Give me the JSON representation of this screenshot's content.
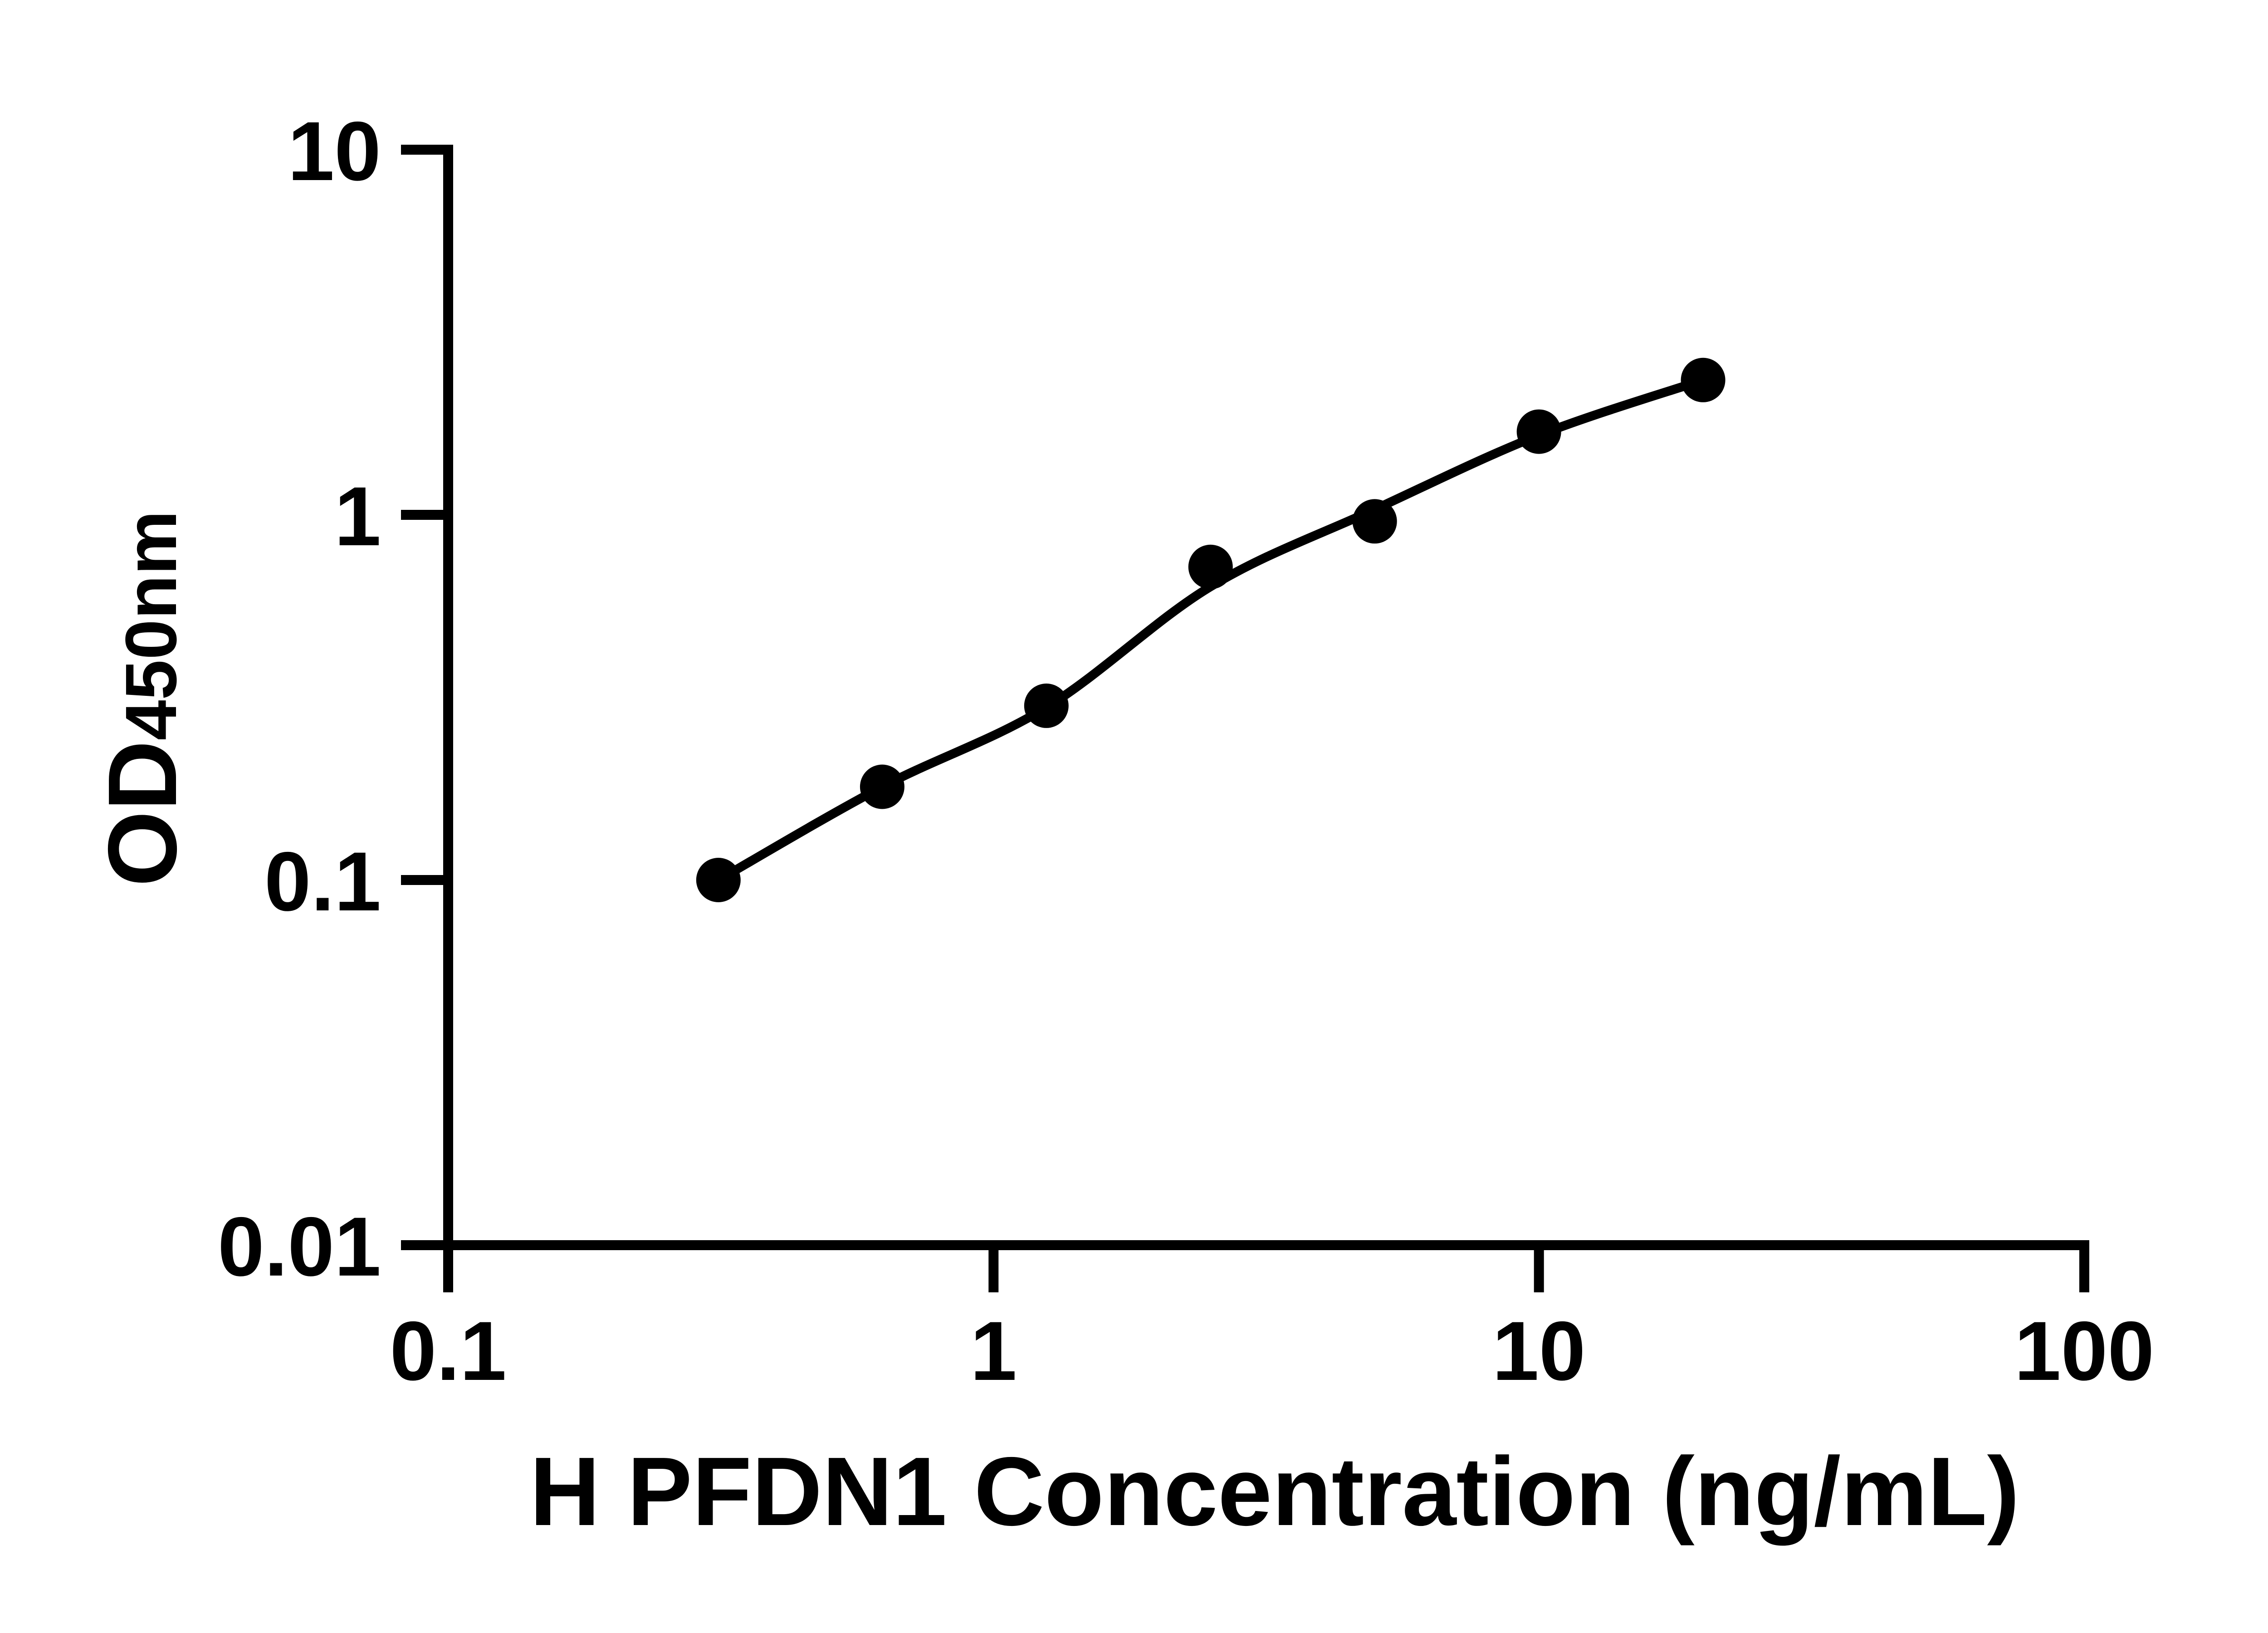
{
  "figure": {
    "background_color": "#ffffff",
    "ink_color": "#000000"
  },
  "chart_data": {
    "type": "scatter",
    "title": "",
    "xlabel": "H PFDN1 Concentration (ng/mL)",
    "ylabel_main": "OD",
    "ylabel_sub": "450nm",
    "x_scale": "log10",
    "y_scale": "log10",
    "xlim": [
      0.1,
      100
    ],
    "ylim": [
      0.01,
      10
    ],
    "grid": false,
    "legend_position": "none",
    "x_ticks": [
      {
        "value": 0.1,
        "label": "0.1"
      },
      {
        "value": 1,
        "label": "1"
      },
      {
        "value": 10,
        "label": "10"
      },
      {
        "value": 100,
        "label": "100"
      }
    ],
    "y_ticks": [
      {
        "value": 10,
        "label": "10"
      },
      {
        "value": 1,
        "label": "1"
      },
      {
        "value": 0.1,
        "label": "0.1"
      },
      {
        "value": 0.01,
        "label": "0.01"
      }
    ],
    "series": [
      {
        "name": "standard-points",
        "kind": "points",
        "marker": "filled-circle",
        "x": [
          0.313,
          0.625,
          1.25,
          2.5,
          5,
          10,
          20
        ],
        "y": [
          0.1,
          0.18,
          0.3,
          0.72,
          0.96,
          1.69,
          2.34
        ]
      },
      {
        "name": "fit-curve",
        "kind": "line",
        "x": [
          0.313,
          0.625,
          1.25,
          2.5,
          5,
          10,
          20
        ],
        "y": [
          0.1,
          0.18,
          0.297,
          0.636,
          1.035,
          1.652,
          2.339
        ]
      }
    ]
  }
}
